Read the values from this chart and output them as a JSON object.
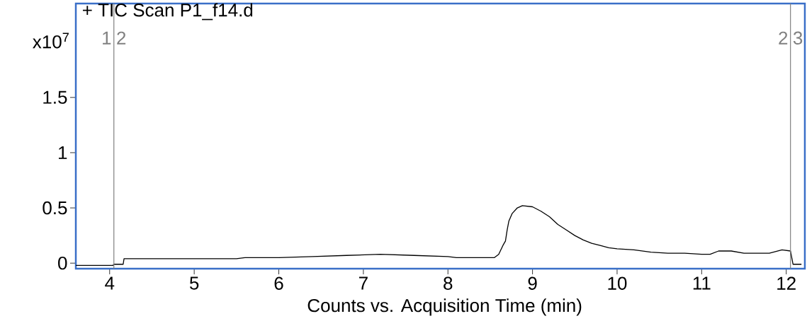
{
  "chart_data": {
    "type": "line",
    "title": "+ TIC Scan P1_f14.d",
    "xlabel": "Counts vs. Acquisition Time (min)",
    "ylabel": "x10$^{7}$",
    "x": [
      3.6,
      4.04,
      4.05,
      4.16,
      4.17,
      4.75,
      5.5,
      5.6,
      6.0,
      6.4,
      6.8,
      7.2,
      7.6,
      8.0,
      8.1,
      8.55,
      8.6,
      8.65,
      8.68,
      8.7,
      8.72,
      8.76,
      8.82,
      8.88,
      9.0,
      9.1,
      9.2,
      9.3,
      9.4,
      9.5,
      9.6,
      9.7,
      9.8,
      9.9,
      10.0,
      10.2,
      10.4,
      10.6,
      10.8,
      11.0,
      11.1,
      11.2,
      11.35,
      11.5,
      11.8,
      11.95,
      12.05,
      12.08,
      12.18
    ],
    "series": [
      {
        "color": "#000000",
        "values": [
          -0.02,
          -0.02,
          -0.01,
          -0.01,
          0.04,
          0.04,
          0.04,
          0.05,
          0.05,
          0.06,
          0.07,
          0.08,
          0.07,
          0.06,
          0.05,
          0.05,
          0.08,
          0.16,
          0.2,
          0.3,
          0.38,
          0.45,
          0.5,
          0.52,
          0.51,
          0.47,
          0.42,
          0.35,
          0.3,
          0.25,
          0.21,
          0.18,
          0.16,
          0.14,
          0.13,
          0.12,
          0.1,
          0.09,
          0.09,
          0.08,
          0.08,
          0.11,
          0.11,
          0.09,
          0.09,
          0.12,
          0.11,
          -0.01,
          -0.01
        ]
      }
    ],
    "xlim": [
      3.6,
      12.22
    ],
    "ylim": [
      -0.05,
      2.35
    ],
    "xticks": [
      4,
      5,
      6,
      7,
      8,
      9,
      10,
      11,
      12
    ],
    "yticks": [
      0,
      0.5,
      1,
      1.5
    ],
    "ref_lines": [
      {
        "axis": "x",
        "value": 4.05,
        "color": "#808080"
      },
      {
        "axis": "x",
        "value": 12.05,
        "color": "#808080"
      }
    ],
    "annotations": [
      "1",
      "2",
      "2",
      "3"
    ]
  }
}
